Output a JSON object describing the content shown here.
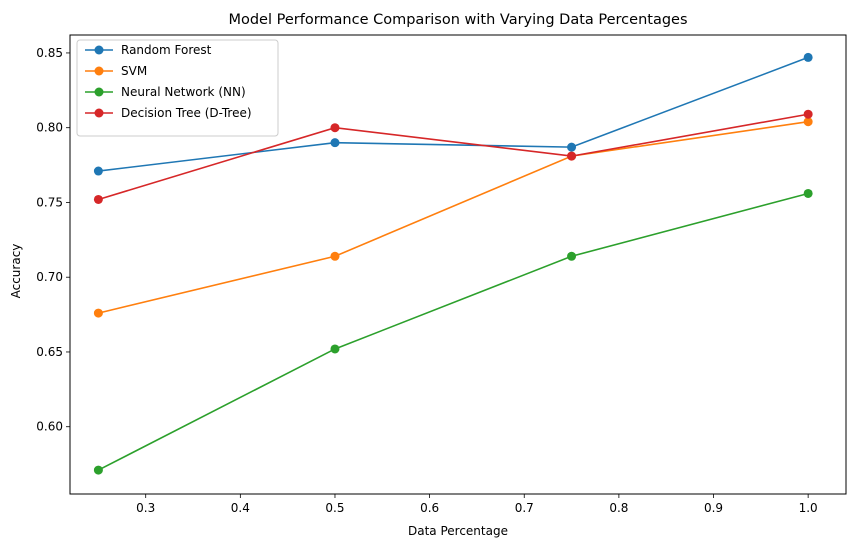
{
  "chart_data": {
    "type": "line",
    "title": "Model Performance Comparison with Varying Data Percentages",
    "xlabel": "Data Percentage",
    "ylabel": "Accuracy",
    "x": [
      0.25,
      0.5,
      0.75,
      1.0
    ],
    "xlim": [
      0.22,
      1.04
    ],
    "ylim": [
      0.555,
      0.862
    ],
    "xticks": [
      0.3,
      0.4,
      0.5,
      0.6,
      0.7,
      0.8,
      0.9,
      1.0
    ],
    "xtick_labels": [
      "0.3",
      "0.4",
      "0.5",
      "0.6",
      "0.7",
      "0.8",
      "0.9",
      "1.0"
    ],
    "yticks": [
      0.6,
      0.65,
      0.7,
      0.75,
      0.8,
      0.85
    ],
    "ytick_labels": [
      "0.60",
      "0.65",
      "0.70",
      "0.75",
      "0.80",
      "0.85"
    ],
    "grid": false,
    "legend_position": "upper-left",
    "series": [
      {
        "name": "Random Forest",
        "color": "#1f77b4",
        "values": [
          0.771,
          0.79,
          0.787,
          0.847
        ]
      },
      {
        "name": "SVM",
        "color": "#ff7f0e",
        "values": [
          0.676,
          0.714,
          0.781,
          0.804
        ]
      },
      {
        "name": "Neural Network (NN)",
        "color": "#2ca02c",
        "values": [
          0.571,
          0.652,
          0.714,
          0.756
        ]
      },
      {
        "name": "Decision Tree (D-Tree)",
        "color": "#d62728",
        "values": [
          0.752,
          0.8,
          0.781,
          0.809
        ]
      }
    ]
  }
}
